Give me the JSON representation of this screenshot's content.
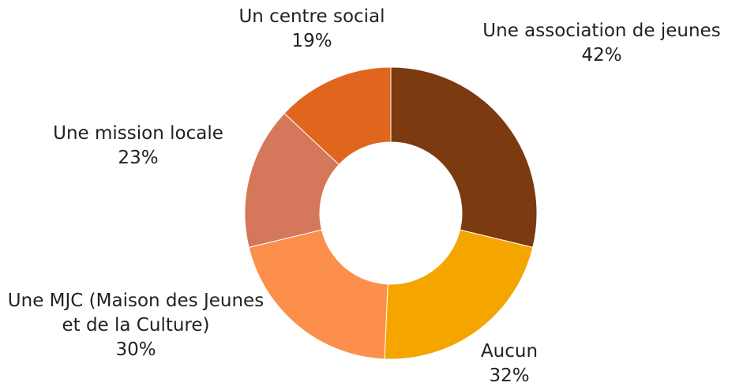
{
  "chart_data": {
    "type": "donut",
    "categories": [
      "Une association de jeunes",
      "Aucun",
      "Une MJC (Maison des Jeunes et de la Culture)",
      "Une mission locale",
      "Un centre social"
    ],
    "values": [
      42,
      32,
      30,
      23,
      19
    ],
    "value_labels": [
      "42%",
      "32%",
      "30%",
      "23%",
      "19%"
    ],
    "colors": [
      "#7b3a10",
      "#f5a500",
      "#fb8f4b",
      "#d4775a",
      "#e0661e"
    ]
  }
}
